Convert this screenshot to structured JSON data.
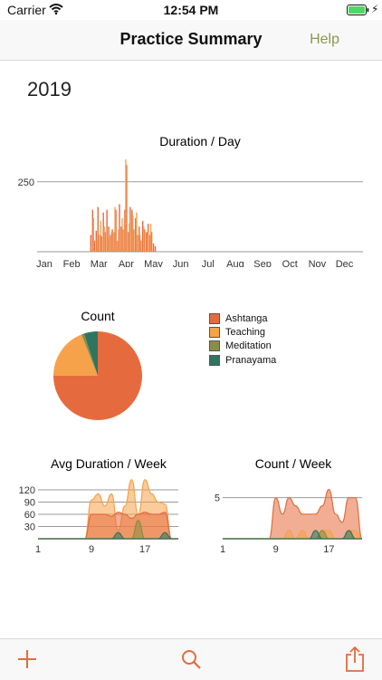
{
  "status_bar": {
    "carrier": "Carrier",
    "time": "12:54 PM"
  },
  "nav": {
    "title": "Practice Summary",
    "help_label": "Help"
  },
  "year": "2019",
  "colors": {
    "ashtanga": "#e56b3e",
    "teaching": "#f6a24a",
    "meditation": "#8a8e45",
    "pranayama": "#2e7560",
    "help_tint": "#8a9a4e",
    "tab_icon": "#e56b3e"
  },
  "legend": {
    "items": [
      {
        "label": "Ashtanga",
        "color": "#e56b3e"
      },
      {
        "label": "Teaching",
        "color": "#f6a24a"
      },
      {
        "label": "Meditation",
        "color": "#8a8e45"
      },
      {
        "label": "Pranayama",
        "color": "#2e7560"
      }
    ]
  },
  "chart_data": [
    {
      "type": "bar",
      "title": "Duration / Day",
      "x_ticks": [
        "Jan",
        "Feb",
        "Mar",
        "Apr",
        "May",
        "Jun",
        "Jul",
        "Aug",
        "Sep",
        "Oct",
        "Nov",
        "Dec"
      ],
      "y_ticks": [
        250
      ],
      "ylim": [
        0,
        340
      ],
      "x_domain": [
        1,
        365
      ],
      "grid": true,
      "series": [
        {
          "color": "#e56b3e",
          "x": [
            61,
            63,
            65,
            67,
            69,
            71,
            73,
            75,
            77,
            79,
            81,
            83,
            85,
            87,
            89,
            91,
            93,
            95,
            97,
            99,
            101,
            103,
            105,
            107,
            109,
            111,
            113,
            115,
            117,
            119,
            121,
            123,
            125,
            127,
            129,
            131,
            133
          ],
          "values": [
            60,
            150,
            40,
            75,
            160,
            60,
            55,
            140,
            70,
            150,
            90,
            60,
            80,
            70,
            150,
            40,
            170,
            90,
            80,
            150,
            310,
            70,
            160,
            150,
            80,
            120,
            60,
            90,
            40,
            110,
            80,
            70,
            100,
            60,
            70,
            30,
            20
          ]
        },
        {
          "color": "#f6a24a",
          "x": [
            64,
            68,
            72,
            76,
            80,
            84,
            88,
            92,
            96,
            100,
            104,
            108,
            112,
            116,
            120,
            124,
            128
          ],
          "values": [
            120,
            40,
            110,
            90,
            50,
            70,
            160,
            80,
            120,
            330,
            100,
            130,
            140,
            60,
            90,
            70,
            100
          ]
        }
      ]
    },
    {
      "type": "pie",
      "title": "Count",
      "slices": [
        {
          "label": "Ashtanga",
          "value": 75
        },
        {
          "label": "Teaching",
          "value": 19
        },
        {
          "label": "Meditation",
          "value": 1
        },
        {
          "label": "Pranayama",
          "value": 5
        }
      ]
    },
    {
      "type": "area",
      "title": "Avg Duration / Week",
      "x_ticks": [
        1,
        9,
        17
      ],
      "y_ticks": [
        30,
        60,
        90,
        120
      ],
      "xlim": [
        1,
        22
      ],
      "ylim": [
        0,
        140
      ],
      "grid": true,
      "series": [
        {
          "label": "Teaching",
          "color": "#f6a24a",
          "x": [
            1,
            8,
            9,
            10,
            11,
            12,
            13,
            14,
            15,
            16,
            17,
            18,
            19,
            20,
            21,
            22
          ],
          "values": [
            0,
            0,
            95,
            110,
            80,
            110,
            20,
            80,
            145,
            60,
            145,
            110,
            90,
            85,
            0,
            0
          ]
        },
        {
          "label": "Ashtanga",
          "color": "#e56b3e",
          "x": [
            1,
            8,
            9,
            10,
            11,
            12,
            13,
            14,
            15,
            16,
            17,
            18,
            19,
            20,
            21,
            22
          ],
          "values": [
            0,
            0,
            60,
            60,
            60,
            55,
            65,
            60,
            50,
            60,
            65,
            60,
            60,
            65,
            0,
            0
          ]
        },
        {
          "label": "Meditation",
          "color": "#8a8e45",
          "x": [
            1,
            13,
            14,
            15,
            16,
            17,
            18,
            22
          ],
          "values": [
            0,
            0,
            0,
            0,
            45,
            0,
            0,
            0
          ]
        },
        {
          "label": "Pranayama",
          "color": "#2e7560",
          "x": [
            1,
            12,
            13,
            14,
            15,
            16,
            17,
            18,
            19,
            20,
            21,
            22
          ],
          "values": [
            0,
            0,
            15,
            0,
            0,
            0,
            0,
            0,
            0,
            15,
            0,
            0
          ]
        }
      ]
    },
    {
      "type": "area",
      "title": "Count  / Week",
      "x_ticks": [
        1,
        9,
        17
      ],
      "y_ticks": [
        5
      ],
      "xlim": [
        1,
        22
      ],
      "ylim": [
        0,
        7.5
      ],
      "grid": true,
      "series": [
        {
          "label": "Ashtanga",
          "color": "#e56b3e",
          "x": [
            1,
            8,
            9,
            10,
            11,
            12,
            13,
            14,
            15,
            16,
            17,
            18,
            19,
            20,
            21,
            22
          ],
          "values": [
            0,
            0,
            5,
            3,
            5,
            4,
            3,
            3,
            3,
            4,
            6,
            3,
            2,
            5,
            5,
            0
          ]
        },
        {
          "label": "Teaching",
          "color": "#f6a24a",
          "x": [
            1,
            8,
            9,
            10,
            11,
            12,
            13,
            14,
            15,
            16,
            17,
            18,
            19,
            20,
            21,
            22
          ],
          "values": [
            0,
            0,
            0,
            0,
            1,
            0,
            1,
            0,
            0,
            1,
            1,
            0,
            0,
            1,
            1,
            0
          ]
        },
        {
          "label": "Meditation",
          "color": "#8a8e45",
          "x": [
            1,
            13,
            14,
            15,
            16,
            17,
            18,
            22
          ],
          "values": [
            0,
            0,
            0,
            0,
            1,
            0,
            0,
            0
          ]
        },
        {
          "label": "Pranayama",
          "color": "#2e7560",
          "x": [
            1,
            13,
            14,
            15,
            16,
            17,
            18,
            19,
            20,
            21,
            22
          ],
          "values": [
            0,
            0,
            0,
            1,
            0,
            0,
            0,
            0,
            1,
            0,
            0
          ]
        }
      ]
    }
  ],
  "tab_bar": {
    "add_icon": "plus-icon",
    "search_icon": "search-icon",
    "share_icon": "share-icon"
  }
}
